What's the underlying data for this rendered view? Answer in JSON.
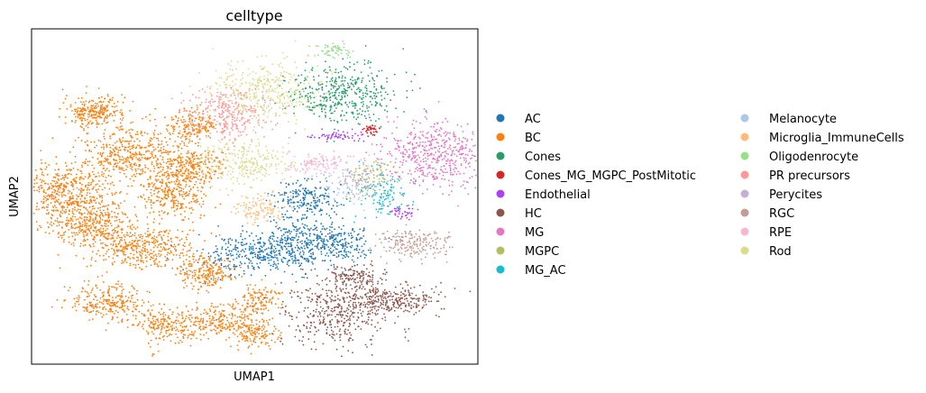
{
  "chart_data": {
    "type": "scatter",
    "title": "celltype",
    "xlabel": "UMAP1",
    "ylabel": "UMAP2",
    "grid": false,
    "legend_position": "right",
    "categories": [
      {
        "name": "AC",
        "color": "#1f77b4"
      },
      {
        "name": "BC",
        "color": "#ff7f0e"
      },
      {
        "name": "Cones",
        "color": "#279e68"
      },
      {
        "name": "Cones_MG_MGPC_PostMitotic",
        "color": "#d62728"
      },
      {
        "name": "Endothelial",
        "color": "#aa40fc"
      },
      {
        "name": "HC",
        "color": "#8c564b"
      },
      {
        "name": "MG",
        "color": "#e377c2"
      },
      {
        "name": "MGPC",
        "color": "#b5bd61"
      },
      {
        "name": "MG_AC",
        "color": "#17becf"
      },
      {
        "name": "Melanocyte",
        "color": "#aec7e8"
      },
      {
        "name": "Microglia_ImmuneCells",
        "color": "#ffbb78"
      },
      {
        "name": "Oligodenrocyte",
        "color": "#98df8a"
      },
      {
        "name": "PR precursors",
        "color": "#ff9896"
      },
      {
        "name": "Perycites",
        "color": "#c5b0d5"
      },
      {
        "name": "RGC",
        "color": "#c49c94"
      },
      {
        "name": "RPE",
        "color": "#f7b6d2"
      },
      {
        "name": "Rod",
        "color": "#dbdb8d"
      }
    ],
    "clusters": [
      {
        "cat": "BC",
        "x": 1.4,
        "y": 8.3,
        "sx": 0.35,
        "sy": 0.25,
        "n": 260
      },
      {
        "cat": "BC",
        "x": 0.7,
        "y": 5.6,
        "sx": 0.55,
        "sy": 0.5,
        "n": 520
      },
      {
        "cat": "BC",
        "x": 2.2,
        "y": 6.9,
        "sx": 0.55,
        "sy": 0.45,
        "n": 450
      },
      {
        "cat": "BC",
        "x": 1.4,
        "y": 4.6,
        "sx": 0.5,
        "sy": 0.35,
        "n": 340
      },
      {
        "cat": "BC",
        "x": 3.2,
        "y": 5.7,
        "sx": 0.35,
        "sy": 0.45,
        "n": 340
      },
      {
        "cat": "BC",
        "x": 3.6,
        "y": 7.8,
        "sx": 0.3,
        "sy": 0.25,
        "n": 180
      },
      {
        "cat": "BC",
        "x": 3.6,
        "y": 6.5,
        "sx": 0.3,
        "sy": 0.3,
        "n": 200
      },
      {
        "cat": "BC",
        "x": 2.4,
        "y": 3.8,
        "sx": 0.6,
        "sy": 0.35,
        "n": 380
      },
      {
        "cat": "BC",
        "x": 1.7,
        "y": 2.0,
        "sx": 0.4,
        "sy": 0.3,
        "n": 260
      },
      {
        "cat": "BC",
        "x": 3.0,
        "y": 1.3,
        "sx": 0.35,
        "sy": 0.3,
        "n": 220
      },
      {
        "cat": "BC",
        "x": 3.9,
        "y": 3.0,
        "sx": 0.35,
        "sy": 0.3,
        "n": 220
      },
      {
        "cat": "BC",
        "x": 4.1,
        "y": 1.4,
        "sx": 0.3,
        "sy": 0.25,
        "n": 180
      },
      {
        "cat": "BC",
        "x": 5.1,
        "y": 2.1,
        "sx": 0.25,
        "sy": 0.25,
        "n": 140
      },
      {
        "cat": "BC",
        "x": 5.0,
        "y": 1.0,
        "sx": 0.3,
        "sy": 0.25,
        "n": 160
      },
      {
        "cat": "Cones",
        "x": 7.0,
        "y": 8.9,
        "sx": 0.6,
        "sy": 0.5,
        "n": 420
      },
      {
        "cat": "Oligodenrocyte",
        "x": 6.8,
        "y": 10.3,
        "sx": 0.25,
        "sy": 0.12,
        "n": 60
      },
      {
        "cat": "Rod",
        "x": 5.2,
        "y": 9.0,
        "sx": 0.6,
        "sy": 0.5,
        "n": 380
      },
      {
        "cat": "Rod",
        "x": 4.8,
        "y": 6.6,
        "sx": 0.5,
        "sy": 0.35,
        "n": 260
      },
      {
        "cat": "PR precursors",
        "x": 4.4,
        "y": 8.2,
        "sx": 0.45,
        "sy": 0.4,
        "n": 280
      },
      {
        "cat": "Microglia_ImmuneCells",
        "x": 5.1,
        "y": 5.1,
        "sx": 0.3,
        "sy": 0.25,
        "n": 120
      },
      {
        "cat": "RPE",
        "x": 6.5,
        "y": 6.6,
        "sx": 0.4,
        "sy": 0.18,
        "n": 120
      },
      {
        "cat": "MG",
        "x": 9.1,
        "y": 6.9,
        "sx": 0.6,
        "sy": 0.55,
        "n": 520
      },
      {
        "cat": "Cones_MG_MGPC_PostMitotic",
        "x": 7.6,
        "y": 7.7,
        "sx": 0.08,
        "sy": 0.08,
        "n": 40
      },
      {
        "cat": "Endothelial",
        "x": 6.8,
        "y": 7.5,
        "sx": 0.35,
        "sy": 0.08,
        "n": 60
      },
      {
        "cat": "Endothelial",
        "x": 8.3,
        "y": 5.0,
        "sx": 0.2,
        "sy": 0.1,
        "n": 40
      },
      {
        "cat": "MG_AC",
        "x": 7.8,
        "y": 5.6,
        "sx": 0.3,
        "sy": 0.45,
        "n": 120
      },
      {
        "cat": "Perycites",
        "x": 7.3,
        "y": 6.1,
        "sx": 0.3,
        "sy": 0.25,
        "n": 80
      },
      {
        "cat": "Melanocyte",
        "x": 7.1,
        "y": 5.8,
        "sx": 0.3,
        "sy": 0.25,
        "n": 60
      },
      {
        "cat": "MGPC",
        "x": 7.6,
        "y": 6.2,
        "sx": 0.3,
        "sy": 0.3,
        "n": 80
      },
      {
        "cat": "AC",
        "x": 5.0,
        "y": 3.6,
        "sx": 0.6,
        "sy": 0.35,
        "n": 320
      },
      {
        "cat": "AC",
        "x": 6.1,
        "y": 4.0,
        "sx": 0.45,
        "sy": 0.45,
        "n": 320
      },
      {
        "cat": "AC",
        "x": 6.2,
        "y": 5.4,
        "sx": 0.35,
        "sy": 0.3,
        "n": 200
      },
      {
        "cat": "AC",
        "x": 7.0,
        "y": 3.9,
        "sx": 0.3,
        "sy": 0.3,
        "n": 140
      },
      {
        "cat": "RGC",
        "x": 8.6,
        "y": 3.9,
        "sx": 0.4,
        "sy": 0.25,
        "n": 200
      },
      {
        "cat": "HC",
        "x": 6.9,
        "y": 1.7,
        "sx": 0.6,
        "sy": 0.55,
        "n": 440
      },
      {
        "cat": "HC",
        "x": 8.1,
        "y": 2.1,
        "sx": 0.55,
        "sy": 0.25,
        "n": 260
      },
      {
        "cat": "HC",
        "x": 7.3,
        "y": 2.9,
        "sx": 0.3,
        "sy": 0.2,
        "n": 120
      }
    ],
    "xlim": [
      0,
      10
    ],
    "ylim": [
      0,
      11
    ]
  }
}
